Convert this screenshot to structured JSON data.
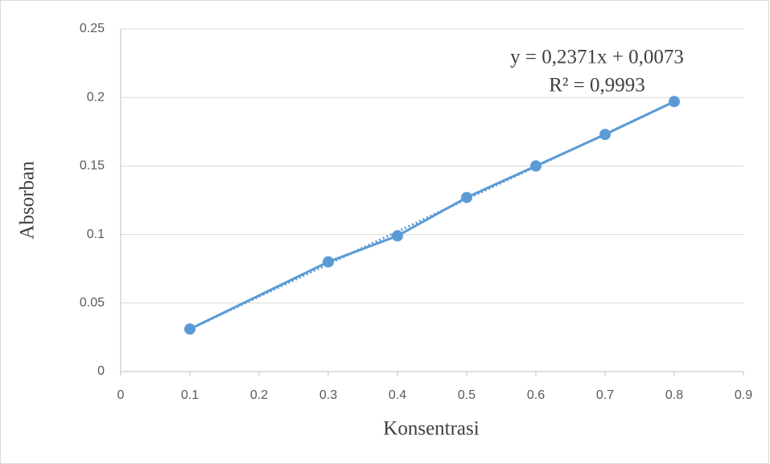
{
  "chart_data": {
    "type": "scatter",
    "x_label": "Konsentrasi",
    "y_label": "Absorban",
    "series": [
      {
        "name": "Absorban",
        "color": "#5b9bd5",
        "x": [
          0.1,
          0.3,
          0.4,
          0.5,
          0.6,
          0.7,
          0.8
        ],
        "values": [
          0.031,
          0.08,
          0.099,
          0.127,
          0.15,
          0.173,
          0.197
        ]
      }
    ],
    "trendline": {
      "slope": 0.2371,
      "intercept": 0.0073,
      "equation": "y = 0,2371x + 0,0073",
      "r_squared": "R² = 0,9993"
    },
    "xlim": [
      0,
      0.9
    ],
    "xticks": [
      0,
      0.1,
      0.2,
      0.3,
      0.4,
      0.5,
      0.6,
      0.7,
      0.8,
      0.9
    ],
    "ylim": [
      0,
      0.25
    ],
    "yticks": [
      0,
      0.05,
      0.1,
      0.15,
      0.2,
      0.25
    ],
    "grid": true
  }
}
